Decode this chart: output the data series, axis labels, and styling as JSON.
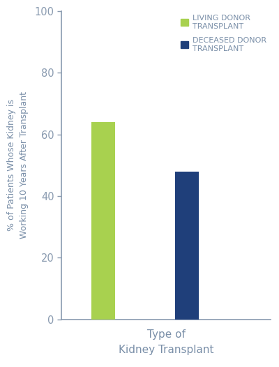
{
  "bar_values": [
    64,
    48
  ],
  "bar_colors": [
    "#a8d14f",
    "#1f3f7a"
  ],
  "legend_labels": [
    "LIVING DONOR\nTRANSPLANT",
    "DECEASED DONOR\nTRANSPLANT"
  ],
  "legend_colors": [
    "#a8d14f",
    "#1f3f7a"
  ],
  "ylabel": "% of Patients Whose Kidney is\nWorking 10 Years After Transplant",
  "xlabel": "Type of\nKidney Transplant",
  "ylim": [
    0,
    100
  ],
  "yticks": [
    0,
    20,
    40,
    60,
    80,
    100
  ],
  "background_color": "#ffffff",
  "tick_color": "#8a9bb0",
  "label_color": "#7a8fa8",
  "legend_text_color": "#7a8fa8",
  "bar_width": 0.28,
  "x_positions": [
    1,
    2
  ],
  "xlim": [
    0.5,
    3.0
  ]
}
